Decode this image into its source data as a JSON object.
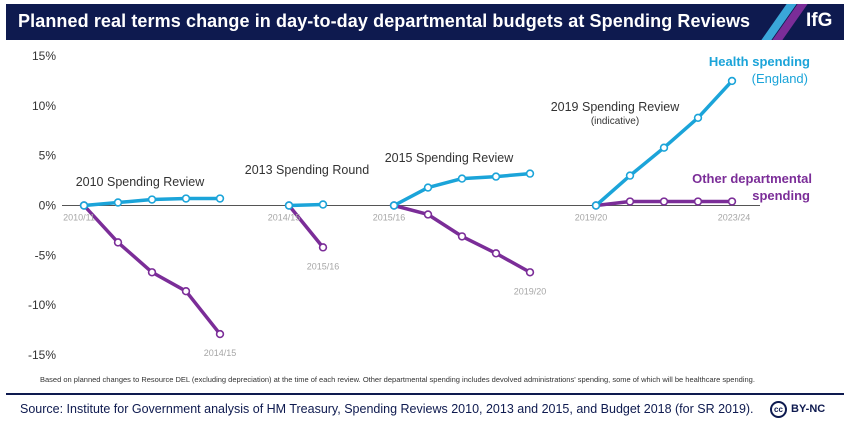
{
  "header": {
    "title": "Planned real terms change in day-to-day departmental budgets at Spending Reviews",
    "logo": "IfG"
  },
  "colors": {
    "header_bg": "#0e1a4f",
    "health": "#1ba4d9",
    "other": "#7b2d98",
    "text_dark": "#333333",
    "tick_light": "#a6a6a6"
  },
  "chart_data": {
    "type": "line",
    "ylim": [
      -15,
      15
    ],
    "y_ticks": [
      "15%",
      "10%",
      "5%",
      "0%",
      "-5%",
      "-10%",
      "-15%"
    ],
    "grid": false,
    "reviews": [
      {
        "title": "2010 Spending Review",
        "start_label": "2010/11",
        "end_label": "2014/15",
        "health": [
          0,
          0.3,
          0.6,
          0.7,
          0.7
        ],
        "other": [
          0,
          -3.7,
          -6.7,
          -8.6,
          -12.9
        ]
      },
      {
        "title": "2013 Spending Round",
        "start_label": "2014/15",
        "end_label": "2015/16",
        "health": [
          0,
          0.1
        ],
        "other": [
          0,
          -4.2
        ]
      },
      {
        "title": "2015 Spending Review",
        "start_label": "2015/16",
        "end_label": "2019/20",
        "health": [
          0,
          1.8,
          2.7,
          2.9,
          3.2
        ],
        "other": [
          0,
          -0.9,
          -3.1,
          -4.8,
          -6.7
        ]
      },
      {
        "title": "2019 Spending Review",
        "subtitle": "(indicative)",
        "start_label": "2019/20",
        "end_label": "2023/24",
        "health": [
          0,
          3.0,
          5.8,
          8.8,
          12.5
        ],
        "other": [
          0,
          0.4,
          0.4,
          0.4,
          0.4
        ]
      }
    ],
    "series_labels": {
      "health_line1": "Health spending",
      "health_line2": "(England)",
      "other_line1": "Other departmental",
      "other_line2": "spending"
    }
  },
  "footnote": "Based on planned changes to Resource DEL (excluding depreciation) at the time of each review. Other departmental spending includes devolved administrations' spending, some of which will be healthcare spending.",
  "source": "Source: Institute for Government analysis of HM Treasury, Spending Reviews 2010, 2013 and 2015, and Budget 2018 (for SR 2019).",
  "license": {
    "icon": "cc",
    "label": "BY-NC"
  }
}
